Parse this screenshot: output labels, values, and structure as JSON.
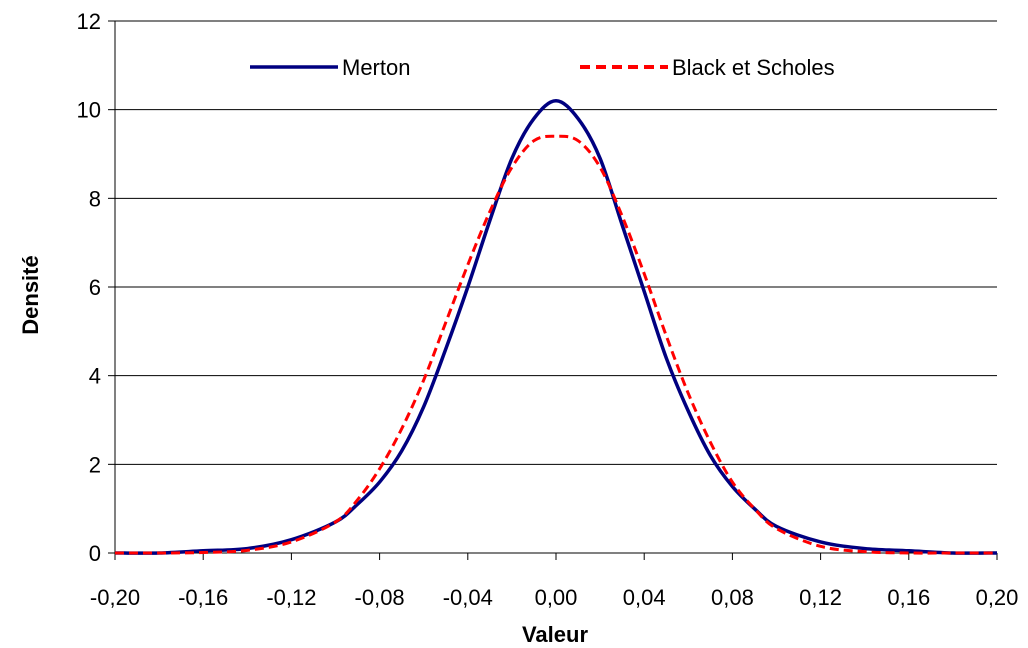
{
  "chart_data": {
    "type": "line",
    "title": "",
    "xlabel": "Valeur",
    "ylabel": "Densité",
    "xlim": [
      -0.2,
      0.2
    ],
    "ylim": [
      0,
      12
    ],
    "x_ticks": [
      "-0,20",
      "-0,16",
      "-0,12",
      "-0,08",
      "-0,04",
      "0,00",
      "0,04",
      "0,08",
      "0,12",
      "0,16",
      "0,20"
    ],
    "y_ticks": [
      "0",
      "2",
      "4",
      "6",
      "8",
      "10",
      "12"
    ],
    "grid": "horizontal",
    "legend_position": "top",
    "series": [
      {
        "name": "Merton",
        "color": "#000080",
        "style": "solid",
        "x": [
          -0.2,
          -0.18,
          -0.16,
          -0.14,
          -0.12,
          -0.1,
          -0.09,
          -0.08,
          -0.07,
          -0.06,
          -0.05,
          -0.04,
          -0.03,
          -0.02,
          -0.01,
          0.0,
          0.01,
          0.02,
          0.03,
          0.04,
          0.05,
          0.06,
          0.07,
          0.08,
          0.09,
          0.1,
          0.12,
          0.14,
          0.16,
          0.18,
          0.2
        ],
        "y": [
          0.0,
          0.0,
          0.05,
          0.1,
          0.3,
          0.7,
          1.1,
          1.6,
          2.3,
          3.3,
          4.6,
          6.0,
          7.5,
          8.9,
          9.8,
          10.2,
          9.8,
          8.9,
          7.4,
          5.9,
          4.4,
          3.2,
          2.2,
          1.5,
          1.0,
          0.6,
          0.25,
          0.1,
          0.05,
          0.0,
          0.0
        ]
      },
      {
        "name": "Black et Scholes",
        "color": "#ff0000",
        "style": "dashed",
        "x": [
          -0.2,
          -0.18,
          -0.16,
          -0.14,
          -0.12,
          -0.1,
          -0.09,
          -0.08,
          -0.07,
          -0.06,
          -0.05,
          -0.04,
          -0.03,
          -0.02,
          -0.01,
          0.0,
          0.01,
          0.02,
          0.03,
          0.04,
          0.05,
          0.06,
          0.07,
          0.08,
          0.09,
          0.1,
          0.12,
          0.14,
          0.16,
          0.18,
          0.2
        ],
        "y": [
          0.0,
          0.0,
          0.01,
          0.06,
          0.25,
          0.7,
          1.2,
          1.9,
          2.8,
          3.9,
          5.2,
          6.5,
          7.7,
          8.7,
          9.3,
          9.4,
          9.3,
          8.7,
          7.6,
          6.3,
          4.9,
          3.6,
          2.5,
          1.6,
          1.0,
          0.55,
          0.15,
          0.03,
          0.0,
          0.0,
          0.0
        ]
      }
    ]
  }
}
